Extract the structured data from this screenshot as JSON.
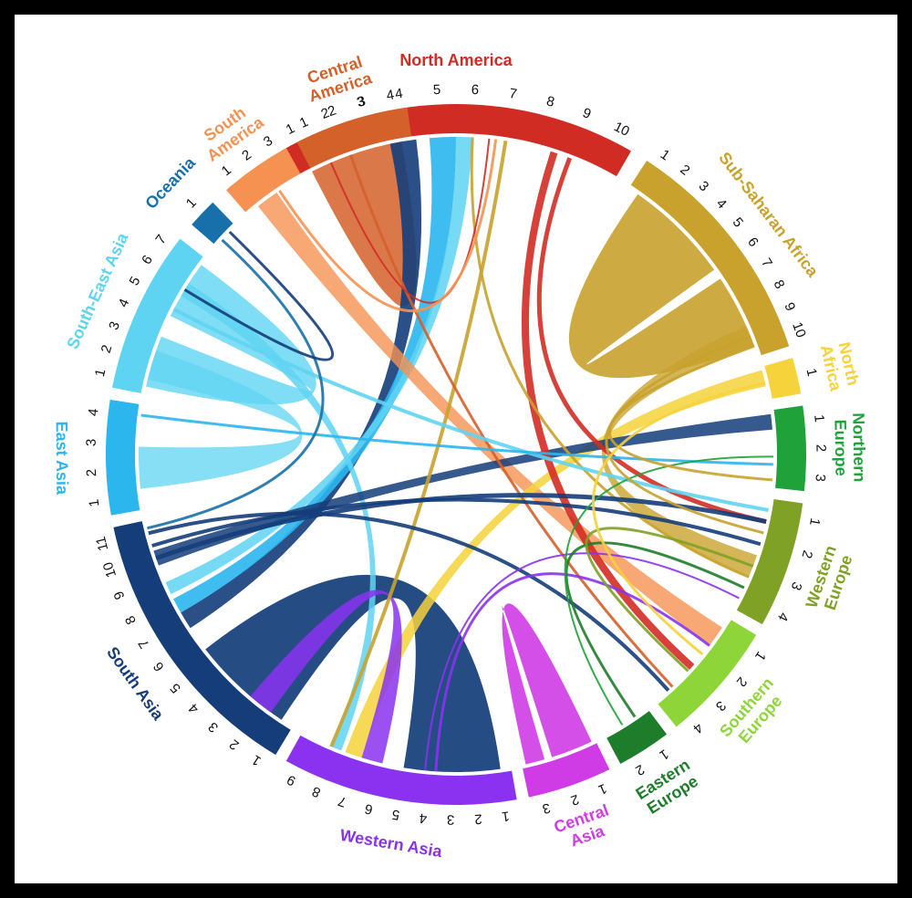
{
  "regions": [
    {
      "id": "north-america",
      "label": [
        "North America"
      ],
      "color": "#D12C24",
      "ticks": [
        1,
        2,
        3,
        4,
        5,
        6,
        7,
        8,
        9,
        10
      ]
    },
    {
      "id": "sub-saharan-africa",
      "label": [
        "Sub-Saharan Africa"
      ],
      "color": "#C9A22E",
      "ticks": [
        1,
        2,
        3,
        4,
        5,
        6,
        7,
        8,
        9,
        10
      ]
    },
    {
      "id": "north-africa",
      "label": [
        "North",
        "Africa"
      ],
      "color": "#F6D23B",
      "ticks": [
        1
      ]
    },
    {
      "id": "northern-europe",
      "label": [
        "Northern",
        "Europe"
      ],
      "color": "#1FA23A",
      "ticks": [
        1,
        2,
        3
      ]
    },
    {
      "id": "western-europe",
      "label": [
        "Western",
        "Europe"
      ],
      "color": "#7FA126",
      "ticks": [
        1,
        2,
        3,
        4
      ]
    },
    {
      "id": "southern-europe",
      "label": [
        "Southern",
        "Europe"
      ],
      "color": "#8ED53A",
      "ticks": [
        1,
        2,
        3,
        4
      ]
    },
    {
      "id": "eastern-europe",
      "label": [
        "Eastern",
        "Europe"
      ],
      "color": "#1E7D2A",
      "ticks": [
        1,
        2
      ]
    },
    {
      "id": "central-asia",
      "label": [
        "Central",
        "Asia"
      ],
      "color": "#CF3CE6",
      "ticks": [
        1,
        2,
        3
      ]
    },
    {
      "id": "western-asia",
      "label": [
        "Western Asia"
      ],
      "color": "#8A32F0",
      "ticks": [
        1,
        2,
        3,
        4,
        5,
        6,
        7,
        8,
        9
      ]
    },
    {
      "id": "south-asia",
      "label": [
        "South Asia"
      ],
      "color": "#143D7A",
      "ticks": [
        1,
        2,
        3,
        4,
        5,
        6,
        7,
        8,
        9,
        10,
        11
      ]
    },
    {
      "id": "east-asia",
      "label": [
        "East Asia"
      ],
      "color": "#2BB6EE",
      "ticks": [
        1,
        2,
        3,
        4
      ]
    },
    {
      "id": "south-east-asia",
      "label": [
        "South-East Asia"
      ],
      "color": "#5FD4F2",
      "ticks": [
        1,
        2,
        3,
        4,
        5,
        6,
        7
      ]
    },
    {
      "id": "oceania",
      "label": [
        "Oceania"
      ],
      "color": "#1770AA",
      "ticks": [
        1
      ]
    },
    {
      "id": "south-america",
      "label": [
        "South",
        "America"
      ],
      "color": "#F59252",
      "ticks": [
        1,
        2,
        3
      ]
    },
    {
      "id": "central-america",
      "label": [
        "Central",
        "America"
      ],
      "color": "#D4602A",
      "ticks": [
        1,
        2,
        3,
        4
      ]
    }
  ]
}
